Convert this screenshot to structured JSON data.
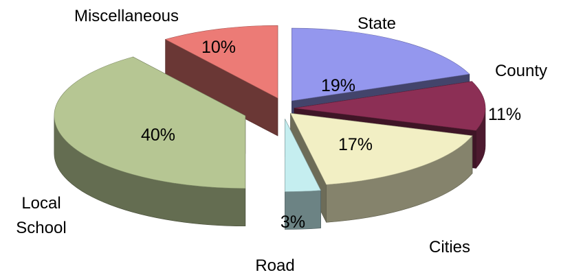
{
  "chart_data": {
    "type": "pie",
    "style": "3d-exploded",
    "slices": [
      {
        "label": "State",
        "value": 19,
        "value_label": "19%",
        "color": "#9497ee"
      },
      {
        "label": "County",
        "value": 11,
        "value_label": "11%",
        "color": "#8c2f55"
      },
      {
        "label": "Cities",
        "value": 17,
        "value_label": "17%",
        "color": "#f2efc4"
      },
      {
        "label": "Road",
        "value": 3,
        "value_label": "3%",
        "color": "#c5eef0"
      },
      {
        "label": "Local\nSchool",
        "value": 40,
        "value_label": "40%",
        "color": "#b6c693"
      },
      {
        "label": "Miscellaneous",
        "value": 10,
        "value_label": "10%",
        "color": "#ec7b76"
      }
    ]
  }
}
